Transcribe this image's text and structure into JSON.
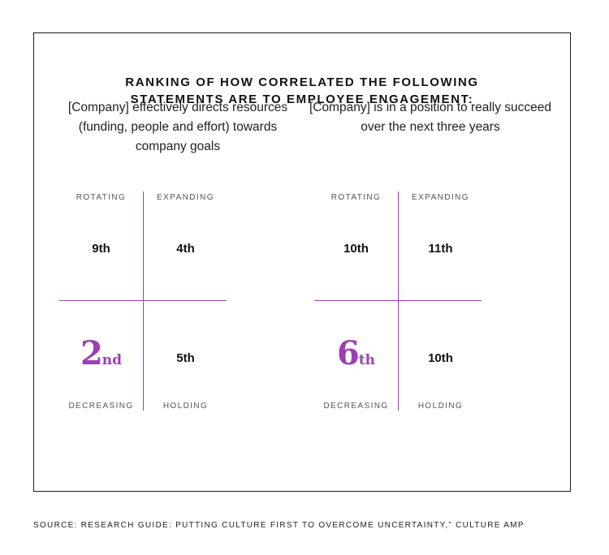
{
  "title": {
    "line1": "RANKING OF HOW CORRELATED THE FOLLOWING",
    "line2": "STATEMENTS ARE TO EMPLOYEE ENGAGEMENT:"
  },
  "panels": [
    {
      "statement": "[Company] effectively directs resources (funding, people and effort) towards company goals",
      "labels": {
        "top_left": "ROTATING",
        "top_right": "EXPANDING",
        "bottom_left": "DECREASING",
        "bottom_right": "HOLDING"
      },
      "ranks": {
        "top_left": "9th",
        "top_right": "4th",
        "bottom_right": "5th"
      },
      "highlight": {
        "number": "2",
        "suffix": "nd"
      }
    },
    {
      "statement": "[Company] is in a position to really succeed over the next three years",
      "labels": {
        "top_left": "ROTATING",
        "top_right": "EXPANDING",
        "bottom_left": "DECREASING",
        "bottom_right": "HOLDING"
      },
      "ranks": {
        "top_left": "10th",
        "top_right": "11th",
        "bottom_right": "10th"
      },
      "highlight": {
        "number": "6",
        "suffix": "th"
      }
    }
  ],
  "source": "SOURCE: RESEARCH GUIDE: PUTTING CULTURE FIRST TO OVERCOME UNCERTAINTY,” CULTURE AMP",
  "colors": {
    "accent": "#9b3fb5",
    "text": "#111111",
    "border": "#1a1a1a"
  }
}
